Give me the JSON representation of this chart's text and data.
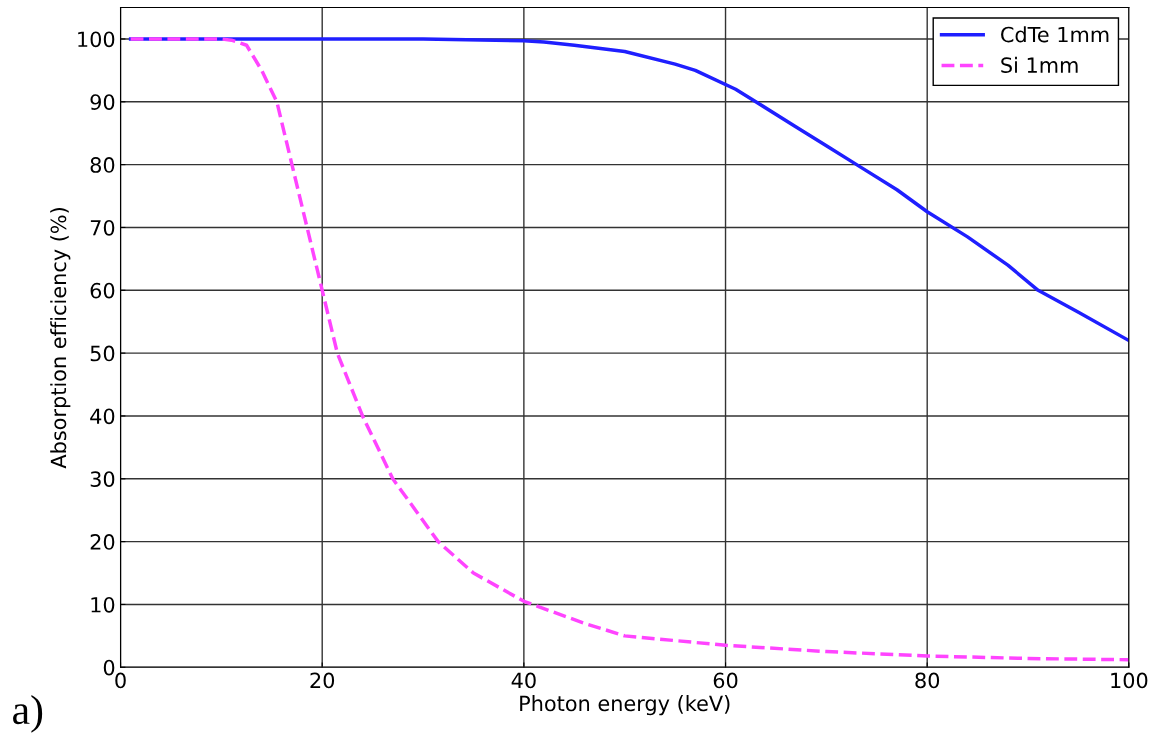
{
  "chart_data": {
    "type": "line",
    "xlabel": "Photon energy (keV)",
    "ylabel": "Absorption efficiency (%)",
    "series": [
      {
        "name": "CdTe 1mm",
        "color": "#1f1fff",
        "line_style": "solid",
        "x": [
          1,
          10,
          20,
          30,
          40,
          42,
          45,
          50,
          55,
          57,
          61,
          63,
          67,
          70,
          73,
          77,
          80,
          84,
          88,
          91,
          95,
          100
        ],
        "values": [
          100,
          100,
          100,
          100,
          99.7,
          99.5,
          99,
          98,
          96,
          95,
          92,
          90,
          86,
          83,
          80,
          76,
          72.5,
          68.5,
          64,
          60,
          56.5,
          52
        ]
      },
      {
        "name": "Si 1mm",
        "color": "#ff44ff",
        "line_style": "dashed",
        "x": [
          1,
          10,
          11,
          12.5,
          14,
          15.5,
          17,
          18.5,
          20,
          21.5,
          24,
          27,
          31.5,
          35,
          40,
          46,
          50,
          60,
          70,
          80,
          90,
          100
        ],
        "values": [
          100,
          100,
          99.8,
          99,
          95,
          90,
          80,
          70,
          60,
          50,
          40,
          30,
          20,
          15,
          10.5,
          7,
          5,
          3.5,
          2.5,
          1.8,
          1.4,
          1.2
        ]
      }
    ],
    "xlim": [
      0,
      100
    ],
    "ylim": [
      0,
      105
    ],
    "xticks": [
      0,
      20,
      40,
      60,
      80,
      100
    ],
    "yticks": [
      0,
      10,
      20,
      30,
      40,
      50,
      60,
      70,
      80,
      90,
      100
    ],
    "grid": true,
    "legend": "top right",
    "marker": "none",
    "annotations": [
      "a)"
    ]
  }
}
